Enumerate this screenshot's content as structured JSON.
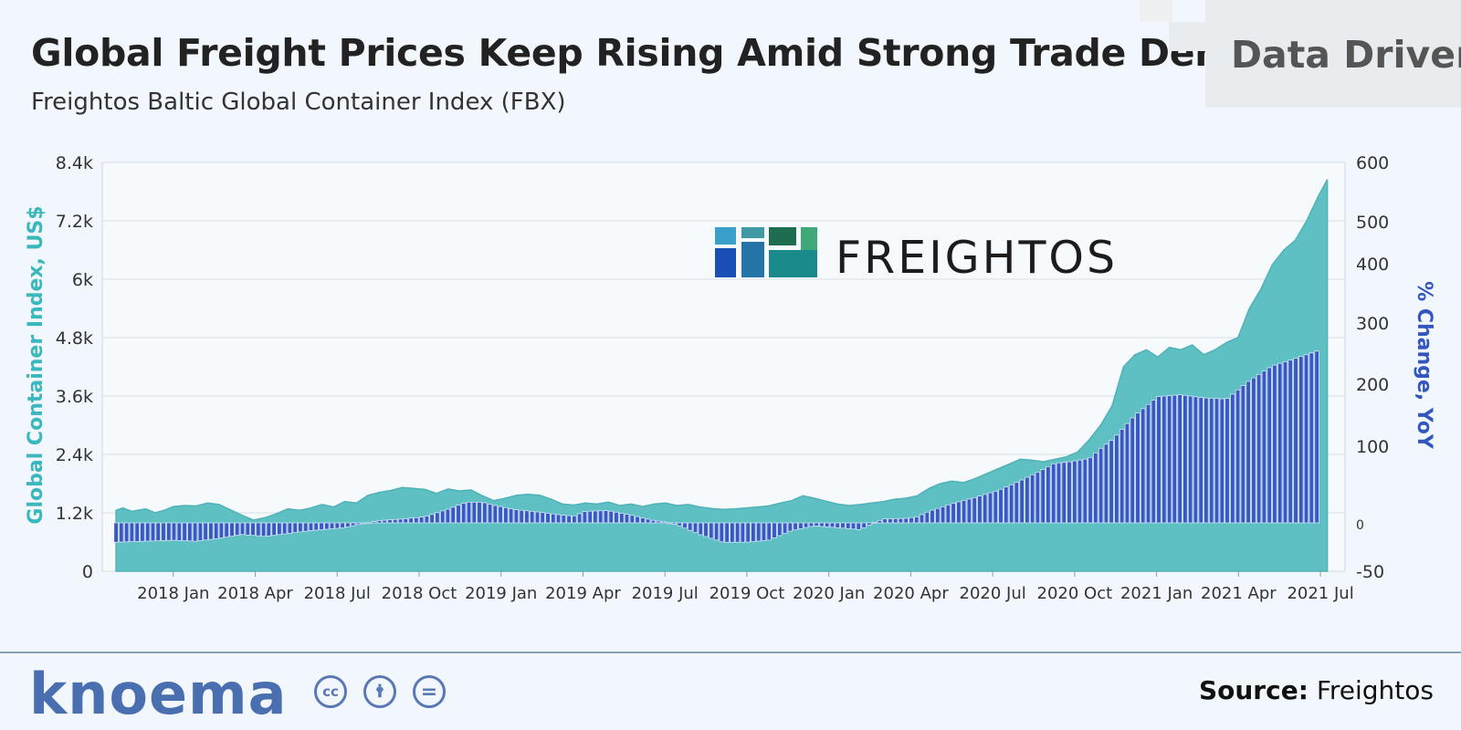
{
  "header": {
    "title": "Global Freight Prices Keep Rising Amid Strong Trade Demand",
    "subtitle": "Freightos Baltic Global Container Index (FBX)",
    "badge": "Data Driven"
  },
  "watermark": {
    "text": "FREIGHTOS"
  },
  "footer": {
    "brand": "knoema",
    "license_icons": [
      "cc-icon",
      "attribution-icon",
      "no-derivatives-icon"
    ],
    "license_glyphs": [
      "cc",
      "🛉",
      "="
    ],
    "source_label": "Source:",
    "source_value": "Freightos"
  },
  "colors": {
    "area": "#5fc0c4",
    "bars": "#3a57c4",
    "left_axis": "#3bb8bd",
    "right_axis": "#3356bf"
  },
  "chart_data": {
    "type": "area+bar",
    "xlabel": "",
    "x_ticks": [
      "2018 Jan",
      "2018 Apr",
      "2018 Jul",
      "2018 Oct",
      "2019 Jan",
      "2019 Apr",
      "2019 Jul",
      "2019 Oct",
      "2020 Jan",
      "2020 Apr",
      "2020 Jul",
      "2020 Oct",
      "2021 Jan",
      "2021 Apr",
      "2021 Jul"
    ],
    "x_range_months": [
      -2.6,
      42.9
    ],
    "left_axis": {
      "label": "Global Container Index, US$",
      "ticks": [
        "0",
        "1.2k",
        "2.4k",
        "3.6k",
        "4.8k",
        "6k",
        "7.2k",
        "8.4k"
      ],
      "ylim": [
        0,
        8400
      ]
    },
    "right_axis": {
      "label": "% Change, YoY",
      "ticks": [
        "-50",
        "0",
        "100",
        "200",
        "300",
        "400",
        "500",
        "600"
      ],
      "ylim": [
        -50,
        600
      ]
    },
    "series": [
      {
        "name": "FBX Global Container Index (US$)",
        "type": "area",
        "points": [
          [
            -2.5,
            1250
          ],
          [
            -2.2,
            1300
          ],
          [
            -1.8,
            1230
          ],
          [
            -1.2,
            1280
          ],
          [
            -0.8,
            1200
          ],
          [
            -0.4,
            1250
          ],
          [
            0,
            1330
          ],
          [
            0.5,
            1350
          ],
          [
            1,
            1340
          ],
          [
            1.5,
            1400
          ],
          [
            2,
            1370
          ],
          [
            2.5,
            1260
          ],
          [
            3,
            1150
          ],
          [
            3.5,
            1050
          ],
          [
            4,
            1100
          ],
          [
            4.5,
            1180
          ],
          [
            5,
            1280
          ],
          [
            5.5,
            1250
          ],
          [
            6,
            1300
          ],
          [
            6.5,
            1370
          ],
          [
            7,
            1320
          ],
          [
            7.5,
            1430
          ],
          [
            8,
            1400
          ],
          [
            8.5,
            1560
          ],
          [
            9,
            1620
          ],
          [
            9.5,
            1660
          ],
          [
            10,
            1720
          ],
          [
            10.5,
            1700
          ],
          [
            11,
            1680
          ],
          [
            11.5,
            1600
          ],
          [
            12,
            1690
          ],
          [
            12.5,
            1650
          ],
          [
            13,
            1670
          ],
          [
            13.5,
            1550
          ],
          [
            14,
            1450
          ],
          [
            14.5,
            1500
          ],
          [
            15,
            1560
          ],
          [
            15.5,
            1580
          ],
          [
            16,
            1560
          ],
          [
            16.5,
            1480
          ],
          [
            17,
            1380
          ],
          [
            17.5,
            1360
          ],
          [
            18,
            1400
          ],
          [
            18.5,
            1380
          ],
          [
            19,
            1420
          ],
          [
            19.5,
            1350
          ],
          [
            20,
            1380
          ],
          [
            20.5,
            1330
          ],
          [
            21,
            1380
          ],
          [
            21.5,
            1400
          ],
          [
            22,
            1350
          ],
          [
            22.5,
            1370
          ],
          [
            23,
            1320
          ],
          [
            23.5,
            1290
          ],
          [
            24,
            1270
          ],
          [
            24.5,
            1280
          ],
          [
            25,
            1300
          ],
          [
            25.5,
            1320
          ],
          [
            26,
            1340
          ],
          [
            26.5,
            1400
          ],
          [
            27,
            1450
          ],
          [
            27.5,
            1550
          ],
          [
            28,
            1500
          ],
          [
            28.5,
            1440
          ],
          [
            29,
            1380
          ],
          [
            29.5,
            1350
          ],
          [
            30,
            1370
          ],
          [
            30.5,
            1400
          ],
          [
            31,
            1430
          ],
          [
            31.5,
            1480
          ],
          [
            32,
            1500
          ],
          [
            32.5,
            1550
          ],
          [
            33,
            1700
          ],
          [
            33.5,
            1800
          ],
          [
            34,
            1850
          ],
          [
            34.5,
            1820
          ],
          [
            35,
            1900
          ],
          [
            35.5,
            2000
          ],
          [
            36,
            2100
          ],
          [
            36.5,
            2200
          ],
          [
            37,
            2300
          ],
          [
            37.5,
            2280
          ],
          [
            38,
            2250
          ],
          [
            38.5,
            2300
          ],
          [
            39,
            2350
          ],
          [
            39.5,
            2450
          ],
          [
            40,
            2700
          ],
          [
            40.5,
            3000
          ],
          [
            41,
            3400
          ],
          [
            41.5,
            4200
          ],
          [
            42,
            4450
          ],
          [
            42.5,
            4550
          ],
          [
            43,
            4400
          ],
          [
            43.5,
            4600
          ],
          [
            44,
            4550
          ],
          [
            44.5,
            4650
          ],
          [
            45,
            4450
          ],
          [
            45.5,
            4550
          ],
          [
            46,
            4700
          ],
          [
            46.5,
            4800
          ],
          [
            47,
            5400
          ],
          [
            47.5,
            5800
          ],
          [
            48,
            6300
          ],
          [
            48.5,
            6600
          ],
          [
            49,
            6800
          ],
          [
            49.5,
            7200
          ],
          [
            50,
            7700
          ],
          [
            50.4,
            8050
          ]
        ]
      },
      {
        "name": "% Change, YoY",
        "type": "bar",
        "points": [
          [
            -2.5,
            -20
          ],
          [
            0,
            -18
          ],
          [
            1,
            -19
          ],
          [
            2,
            -16
          ],
          [
            3,
            -12
          ],
          [
            4,
            -14
          ],
          [
            5,
            -11
          ],
          [
            6,
            -8
          ],
          [
            7,
            -6
          ],
          [
            7.5,
            -5
          ],
          [
            8,
            -2
          ],
          [
            8.5,
            0
          ],
          [
            9,
            3
          ],
          [
            10,
            5
          ],
          [
            11,
            8
          ],
          [
            12,
            18
          ],
          [
            12.8,
            27
          ],
          [
            13.5,
            27
          ],
          [
            14,
            23
          ],
          [
            15,
            17
          ],
          [
            16,
            14
          ],
          [
            17,
            10
          ],
          [
            17.5,
            9
          ],
          [
            18,
            15
          ],
          [
            19,
            16
          ],
          [
            20,
            10
          ],
          [
            21,
            3
          ],
          [
            21.5,
            1
          ],
          [
            22,
            -2
          ],
          [
            23,
            -12
          ],
          [
            24,
            -20
          ],
          [
            25,
            -20
          ],
          [
            26,
            -18
          ],
          [
            27,
            -8
          ],
          [
            28,
            -3
          ],
          [
            29,
            -5
          ],
          [
            30,
            -7
          ],
          [
            31,
            5
          ],
          [
            32,
            6
          ],
          [
            32.5,
            8
          ],
          [
            33,
            15
          ],
          [
            34,
            25
          ],
          [
            35,
            33
          ],
          [
            36,
            42
          ],
          [
            37,
            55
          ],
          [
            38,
            70
          ],
          [
            38.5,
            78
          ],
          [
            39,
            79
          ],
          [
            40,
            84
          ],
          [
            41,
            110
          ],
          [
            42,
            150
          ],
          [
            43,
            180
          ],
          [
            44,
            183
          ],
          [
            45,
            178
          ],
          [
            46,
            176
          ],
          [
            47,
            206
          ],
          [
            48,
            230
          ],
          [
            49,
            242
          ],
          [
            50.1,
            256
          ]
        ]
      }
    ]
  }
}
